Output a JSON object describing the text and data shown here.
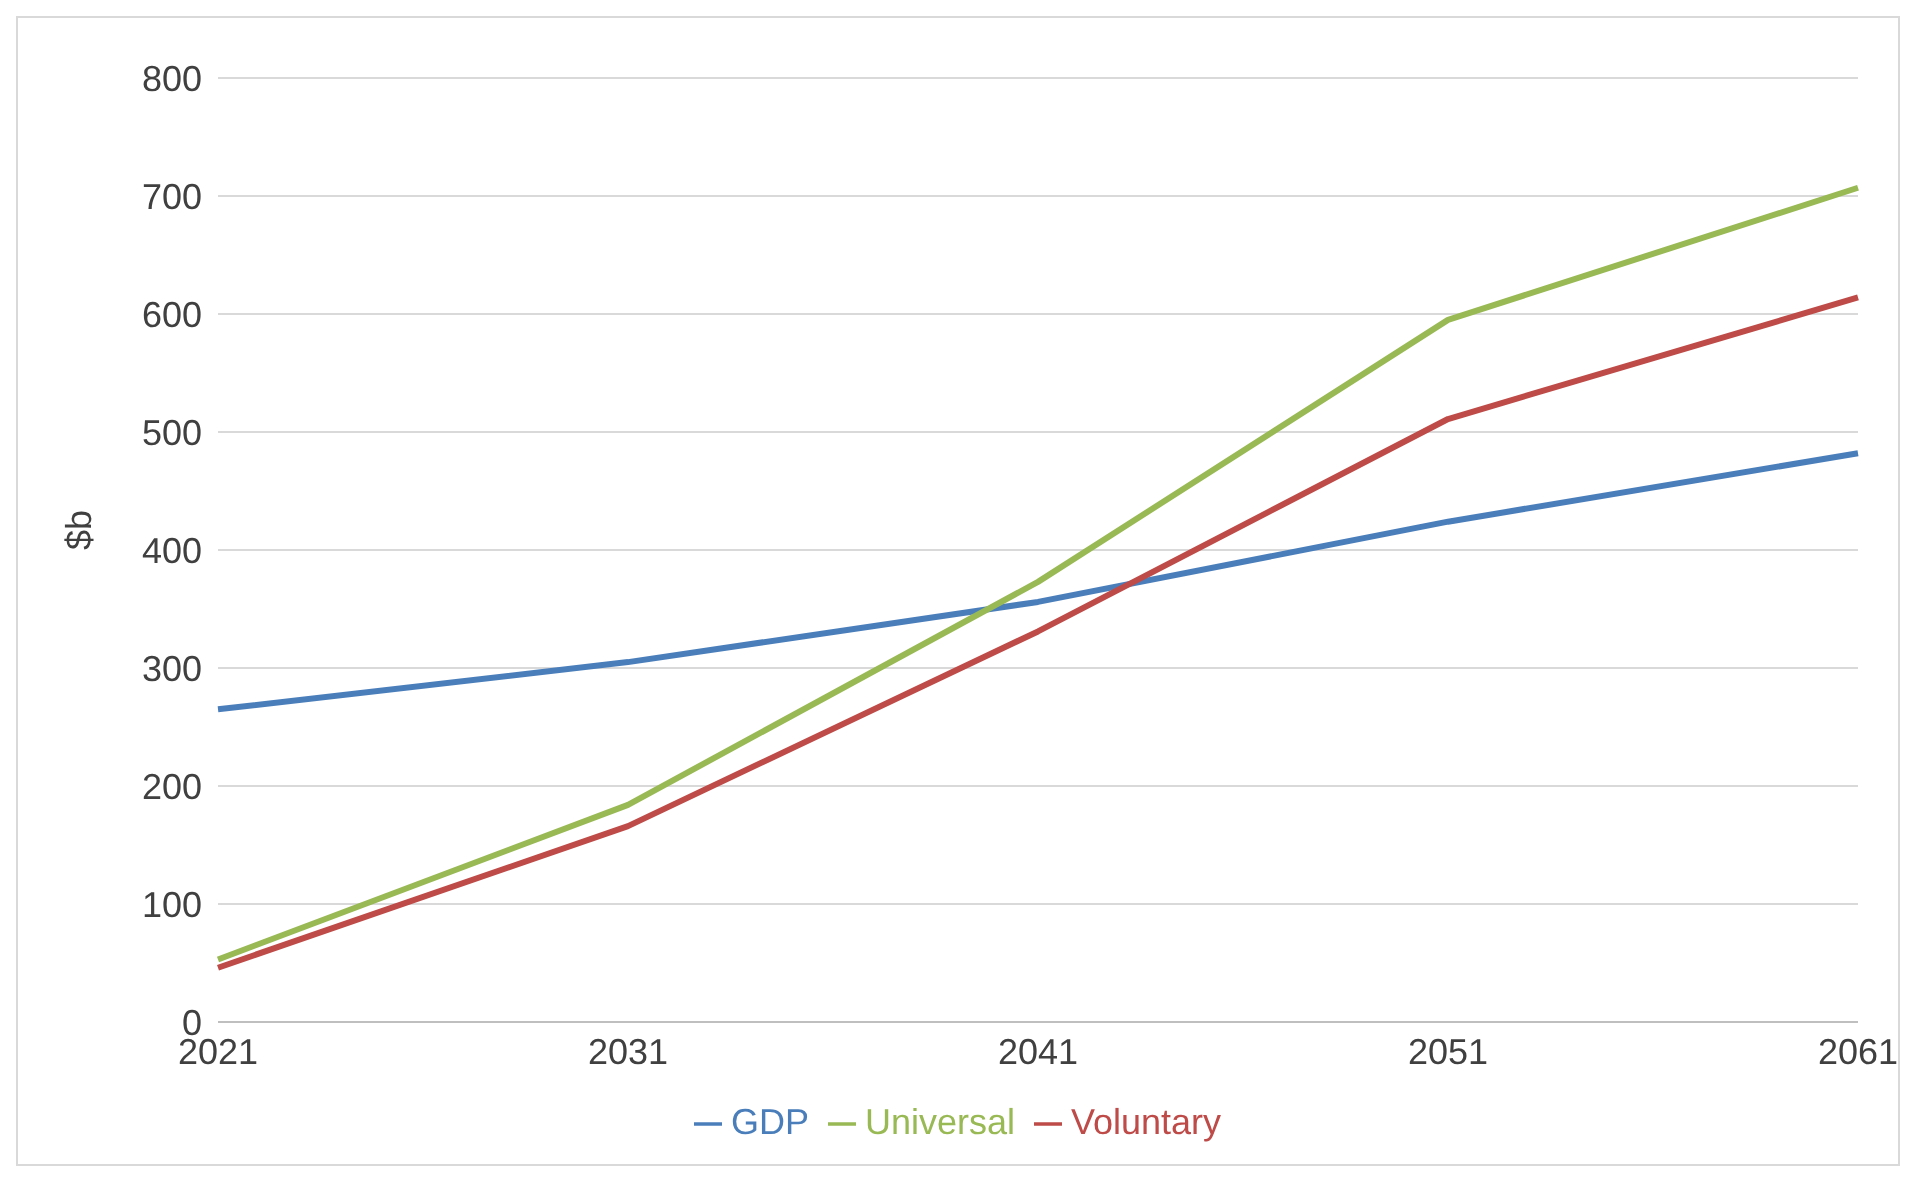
{
  "chart_data": {
    "type": "line",
    "ylabel": "$b",
    "categories": [
      "2021",
      "2031",
      "2041",
      "2051",
      "2061"
    ],
    "series": [
      {
        "name": "GDP",
        "color": "#4a7ebb",
        "values": [
          265,
          305,
          356,
          424,
          482
        ]
      },
      {
        "name": "Voluntary",
        "color": "#be4b48",
        "values": [
          46,
          166,
          331,
          511,
          614
        ]
      },
      {
        "name": "Universal",
        "color": "#98b954",
        "values": [
          53,
          184,
          373,
          595,
          707
        ]
      }
    ],
    "ylim": [
      0,
      800
    ],
    "yticks": [
      0,
      100,
      200,
      300,
      400,
      500,
      600,
      700,
      800
    ],
    "grid": "y",
    "legend": "bottom",
    "marker": "none",
    "line_style": "solid"
  }
}
